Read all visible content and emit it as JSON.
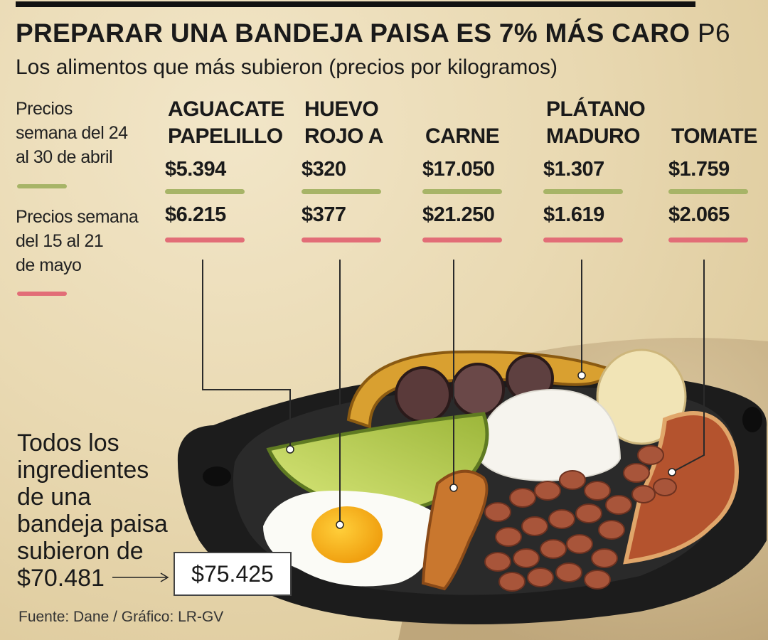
{
  "header": {
    "title": "PREPARAR UNA BANDEJA PAISA ES 7% MÁS CARO",
    "page_ref": "P6",
    "subtitle": "Los alimentos que más subieron (precios por kilogramos)"
  },
  "legend": {
    "period_1": "Precios\nsemana del 24\nal 30 de abril",
    "period_2": "Precios semana\ndel 15 al 21\nde mayo"
  },
  "chart_data": {
    "type": "table",
    "columns": [
      "Precios semana del 24 al 30 de abril",
      "Precios semana del 15 al 21 de mayo"
    ],
    "items": [
      {
        "name": "AGUACATE\nPAPELILLO",
        "price_1": "$5.394",
        "price_2": "$6.215"
      },
      {
        "name": "HUEVO\nROJO A",
        "price_1": "$320",
        "price_2": "$377"
      },
      {
        "name": "CARNE",
        "price_1": "$17.050",
        "price_2": "$21.250"
      },
      {
        "name": "PLÁTANO\nMADURO",
        "price_1": "$1.307",
        "price_2": "$1.619"
      },
      {
        "name": "TOMATE",
        "price_1": "$1.759",
        "price_2": "$2.065"
      }
    ],
    "colors": {
      "period_1": "#a7b467",
      "period_2": "#e26d77"
    }
  },
  "callout": {
    "text": "Todos los ingredientes de una bandeja paisa subieron de $70.481",
    "new_total": "$75.425"
  },
  "footer": {
    "source": "Fuente: Dane / Gráfico: LR-GV"
  }
}
